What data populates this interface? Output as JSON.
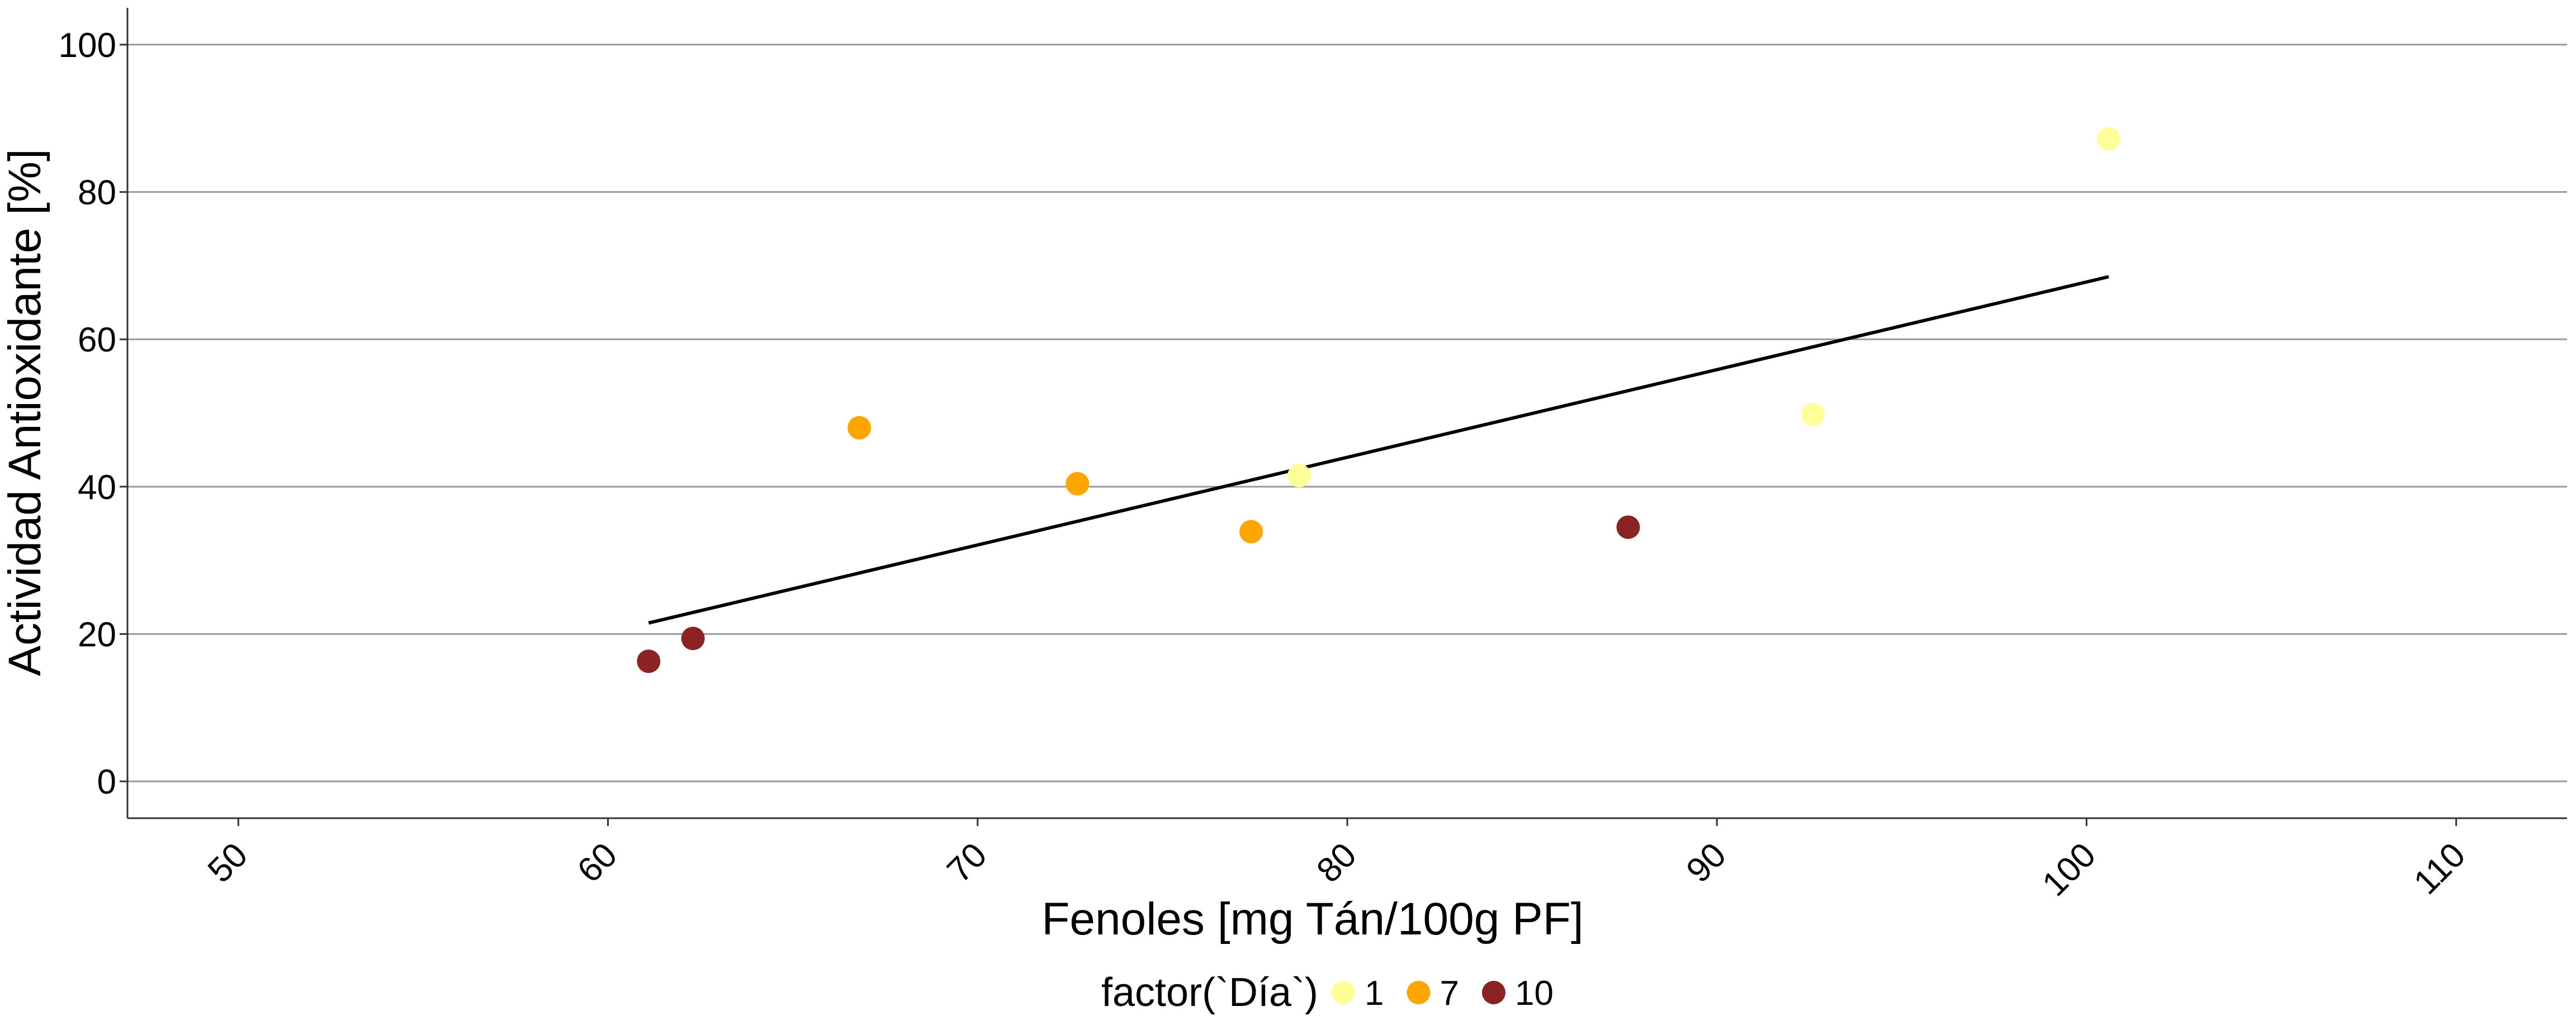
{
  "chart_data": {
    "type": "scatter",
    "title": "",
    "xlabel": "Fenoles [mg Tán/100g PF]",
    "ylabel": "Actividad Antioxidante [%]",
    "xlim": [
      47,
      113
    ],
    "ylim": [
      -5,
      105
    ],
    "xticks": [
      50,
      60,
      70,
      80,
      90,
      100,
      110
    ],
    "yticks": [
      0,
      20,
      40,
      60,
      80,
      100
    ],
    "x_tick_labels": [
      "50",
      "60",
      "70",
      "80",
      "90",
      "100",
      "110"
    ],
    "y_tick_labels": [
      "0",
      "20",
      "40",
      "60",
      "80",
      "100"
    ],
    "grid": "horizontal",
    "legend": {
      "title": "factor(`Día`)",
      "placement": "bottom",
      "entries": [
        {
          "label": "1",
          "color": "#FFFF99"
        },
        {
          "label": "7",
          "color": "#FFA500"
        },
        {
          "label": "10",
          "color": "#8B2323"
        }
      ]
    },
    "series": [
      {
        "name": "1",
        "color": "#FFFF99",
        "points": [
          [
            78.7,
            41.5
          ],
          [
            92.6,
            49.8
          ],
          [
            100.6,
            87.2
          ]
        ]
      },
      {
        "name": "7",
        "color": "#FFA500",
        "points": [
          [
            66.8,
            48.0
          ],
          [
            72.7,
            40.4
          ],
          [
            77.4,
            33.9
          ]
        ]
      },
      {
        "name": "10",
        "color": "#8B2323",
        "points": [
          [
            61.1,
            16.3
          ],
          [
            62.3,
            19.4
          ],
          [
            87.6,
            34.5
          ]
        ]
      }
    ],
    "trend_line": {
      "x": [
        61.1,
        100.6
      ],
      "y": [
        21.5,
        68.5
      ],
      "color": "#000000"
    }
  }
}
